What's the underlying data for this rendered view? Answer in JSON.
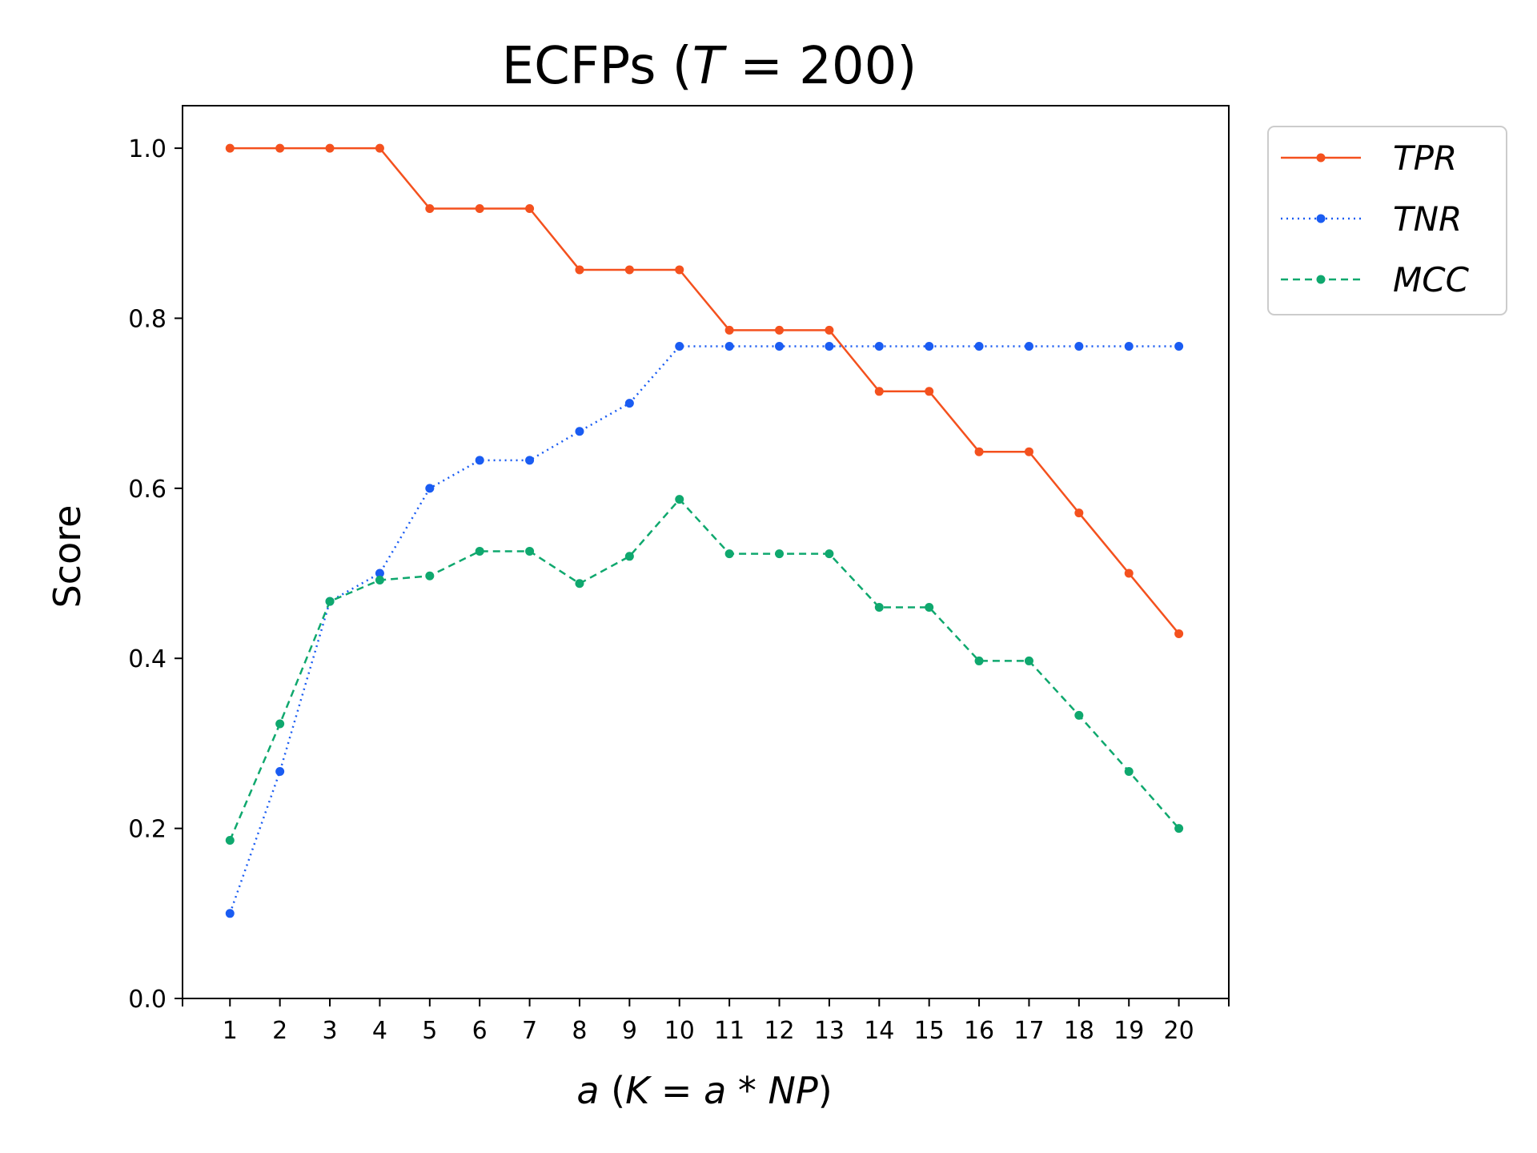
{
  "chart_data": {
    "type": "line",
    "title": {
      "prefix": "ECFPs (",
      "var": "T",
      "suffix": " = 200)"
    },
    "xlabel": {
      "a1": "a",
      "t1": " (",
      "k": "K",
      "t2": " = ",
      "a2": "a",
      "t3": " * ",
      "np": "NP",
      "t4": ")"
    },
    "ylabel": "Score",
    "x": [
      1,
      2,
      3,
      4,
      5,
      6,
      7,
      8,
      9,
      10,
      11,
      12,
      13,
      14,
      15,
      16,
      17,
      18,
      19,
      20
    ],
    "x_tick_labels": [
      "1",
      "2",
      "3",
      "4",
      "5",
      "6",
      "7",
      "8",
      "9",
      "10",
      "11",
      "12",
      "13",
      "14",
      "15",
      "16",
      "17",
      "18",
      "19",
      "20"
    ],
    "xlim": [
      0.05,
      21.0
    ],
    "ylim": [
      0.0,
      1.05
    ],
    "y_ticks": [
      0.0,
      0.2,
      0.4,
      0.6,
      0.8,
      1.0
    ],
    "y_tick_labels": [
      "0.0",
      "0.2",
      "0.4",
      "0.6",
      "0.8",
      "1.0"
    ],
    "grid": false,
    "legend_position": "outside-top-right",
    "series": [
      {
        "name": "TPR",
        "color": "#f4511e",
        "style": "solid",
        "values": [
          1.0,
          1.0,
          1.0,
          1.0,
          0.929,
          0.929,
          0.929,
          0.857,
          0.857,
          0.857,
          0.786,
          0.786,
          0.786,
          0.714,
          0.714,
          0.643,
          0.643,
          0.571,
          0.5,
          0.429
        ]
      },
      {
        "name": "TNR",
        "color": "#1a5cf2",
        "style": "dotted",
        "values": [
          0.1,
          0.267,
          0.467,
          0.5,
          0.6,
          0.633,
          0.633,
          0.667,
          0.7,
          0.767,
          0.767,
          0.767,
          0.767,
          0.767,
          0.767,
          0.767,
          0.767,
          0.767,
          0.767,
          0.767
        ]
      },
      {
        "name": "MCC",
        "color": "#0fa86e",
        "style": "dashed",
        "values": [
          0.186,
          0.323,
          0.467,
          0.492,
          0.497,
          0.526,
          0.526,
          0.488,
          0.52,
          0.587,
          0.523,
          0.523,
          0.523,
          0.46,
          0.46,
          0.397,
          0.397,
          0.333,
          0.267,
          0.2
        ]
      }
    ]
  }
}
